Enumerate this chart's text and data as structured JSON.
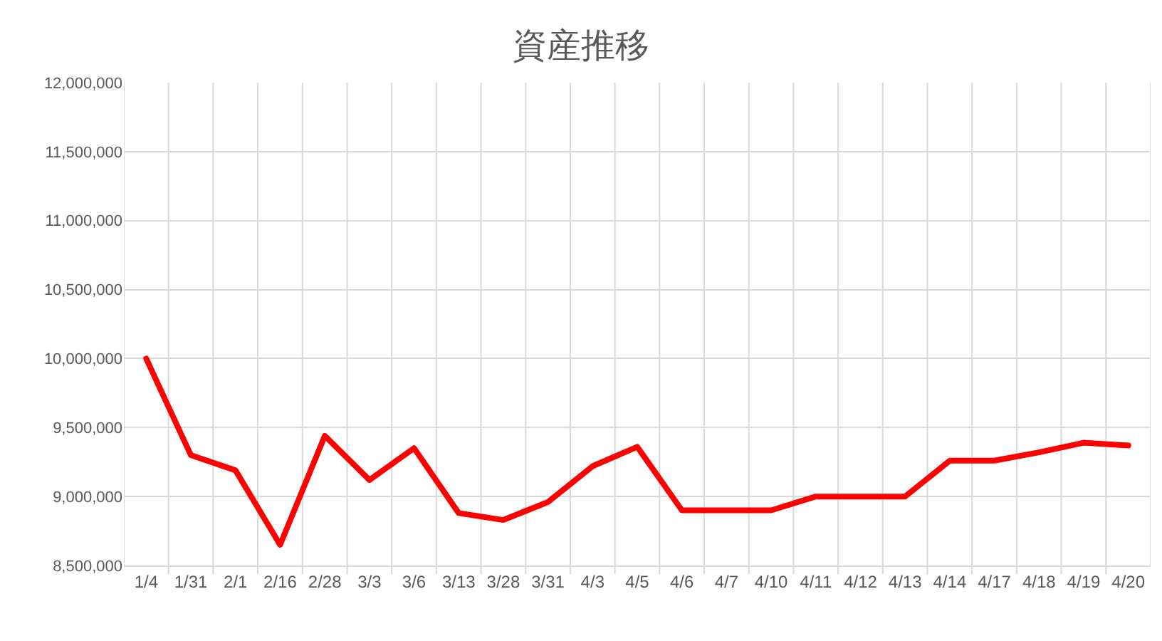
{
  "chart_data": {
    "type": "line",
    "title": "資産推移",
    "categories": [
      "1/4",
      "1/31",
      "2/1",
      "2/16",
      "2/28",
      "3/3",
      "3/6",
      "3/13",
      "3/28",
      "3/31",
      "4/3",
      "4/5",
      "4/6",
      "4/7",
      "4/10",
      "4/11",
      "4/12",
      "4/13",
      "4/14",
      "4/17",
      "4/18",
      "4/19",
      "4/20"
    ],
    "series": [
      {
        "color": "#ff0000",
        "values": [
          10000000,
          9300000,
          9190000,
          8650000,
          9440000,
          9120000,
          9350000,
          8880000,
          8830000,
          8960000,
          9220000,
          9360000,
          8900000,
          8900000,
          8900000,
          9000000,
          9000000,
          9000000,
          9260000,
          9260000,
          9320000,
          9390000,
          9370000
        ]
      }
    ],
    "ylim": [
      8500000,
      12000000
    ],
    "yticks": [
      {
        "value": 8500000,
        "label": "8,500,000"
      },
      {
        "value": 9000000,
        "label": "9,000,000"
      },
      {
        "value": 9500000,
        "label": "9,500,000"
      },
      {
        "value": 10000000,
        "label": "10,000,000"
      },
      {
        "value": 10500000,
        "label": "10,500,000"
      },
      {
        "value": 11000000,
        "label": "11,000,000"
      },
      {
        "value": 11500000,
        "label": "11,500,000"
      },
      {
        "value": 12000000,
        "label": "12,000,000"
      }
    ],
    "grid": true,
    "marker": "none",
    "line_style": "solid"
  }
}
